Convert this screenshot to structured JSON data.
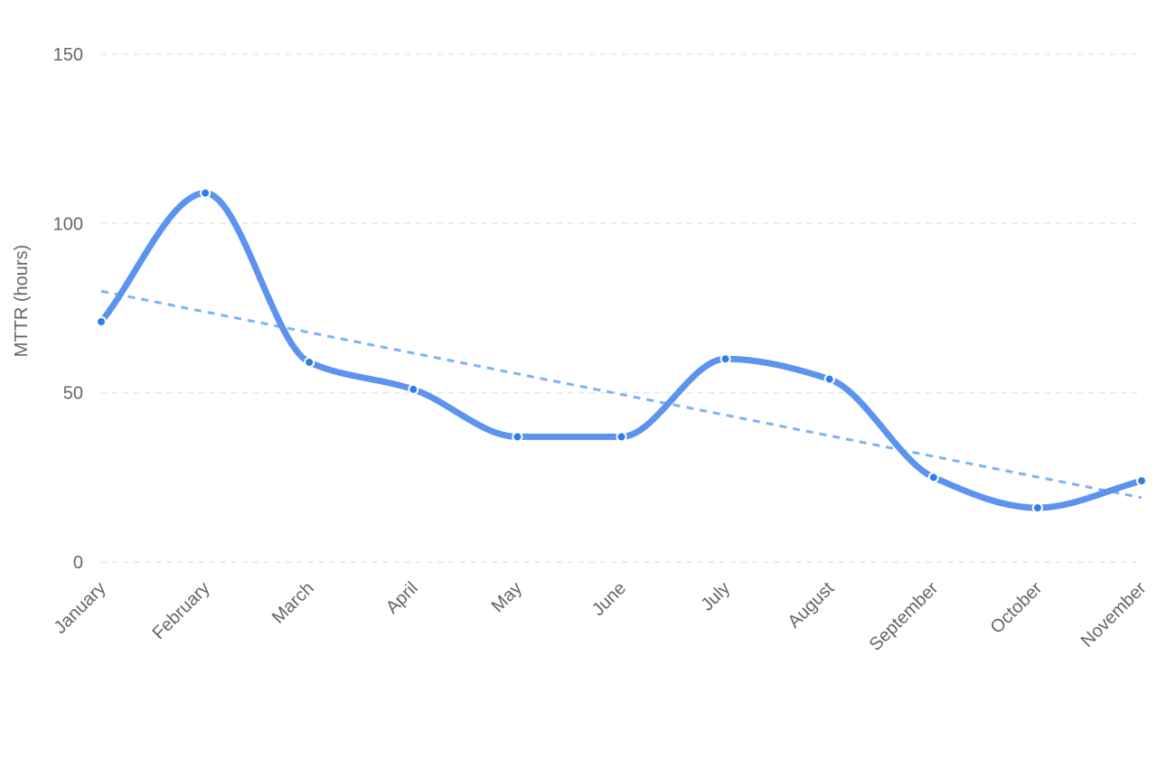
{
  "chart_data": {
    "type": "line",
    "title": "",
    "xlabel": "",
    "ylabel": "MTTR (hours)",
    "ylim": [
      0,
      150
    ],
    "yticks": [
      0,
      50,
      100,
      150
    ],
    "grid": true,
    "categories": [
      "January",
      "February",
      "March",
      "April",
      "May",
      "June",
      "July",
      "August",
      "September",
      "October",
      "November"
    ],
    "series": [
      {
        "values": [
          71,
          109,
          59,
          51,
          37,
          37,
          60,
          54,
          25,
          16,
          24
        ],
        "color": "#5b93ee",
        "marker_color": "#2f7ee6",
        "curve": "smooth"
      }
    ],
    "trendline": {
      "start": 80,
      "end": 19,
      "color": "#7cb4f2",
      "style": "dashed"
    }
  }
}
